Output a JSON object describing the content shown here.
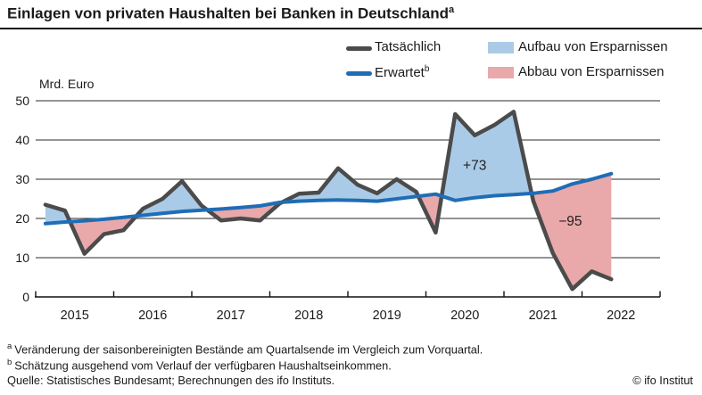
{
  "header": {
    "title": "Einlagen von privaten Haushalten bei Banken in Deutschland",
    "title_superscript": "a"
  },
  "legend": {
    "actual_label": "Tatsächlich",
    "expected_label": "Erwartet",
    "expected_superscript": "b",
    "buildup_label": "Aufbau von Ersparnissen",
    "drawdown_label": "Abbau von Ersparnissen"
  },
  "chart_data": {
    "type": "line",
    "unit_label": "Mrd. Euro",
    "x_years": [
      "2015",
      "2016",
      "2017",
      "2018",
      "2019",
      "2020",
      "2021",
      "2022"
    ],
    "quarters_per_year": 4,
    "ylim": [
      0,
      50
    ],
    "yticks": [
      0,
      10,
      20,
      30,
      40,
      50
    ],
    "grid": "horizontal",
    "legend_position": "top",
    "series": [
      {
        "name": "Tatsächlich",
        "color": "#4b4b4b",
        "values": [
          23.5,
          22.0,
          11.0,
          16.0,
          17.0,
          22.5,
          25.0,
          29.5,
          23.3,
          19.5,
          20.0,
          19.5,
          23.8,
          26.3,
          26.6,
          32.8,
          28.6,
          26.4,
          30.0,
          26.8,
          16.4,
          46.6,
          41.2,
          43.8,
          47.2,
          24.5,
          11.2,
          2.0,
          6.5,
          4.5
        ]
      },
      {
        "name": "Erwartet",
        "color": "#1f6db6",
        "values": [
          18.7,
          19.1,
          19.4,
          19.8,
          20.3,
          20.8,
          21.3,
          21.8,
          22.1,
          22.4,
          22.8,
          23.2,
          24.1,
          24.4,
          24.6,
          24.7,
          24.6,
          24.4,
          25.0,
          25.6,
          26.2,
          24.6,
          25.3,
          25.8,
          26.1,
          26.4,
          27.0,
          28.8,
          30.0,
          31.4
        ]
      }
    ],
    "fills": {
      "above_color": "#aacbe7",
      "above_label": "Aufbau von Ersparnissen",
      "below_color": "#e9a8aa",
      "below_label": "Abbau von Ersparnissen"
    },
    "annotations": [
      {
        "text": "+73",
        "x": 22.0,
        "y": 33.5
      },
      {
        "text": "−95",
        "x": 26.9,
        "y": 19.3
      }
    ]
  },
  "footnotes": [
    {
      "marker": "a",
      "text": "Veränderung der saisonbereinigten Bestände am Quartalsende im Vergleich zum Vorquartal."
    },
    {
      "marker": "b",
      "text": "Schätzung ausgehend vom Verlauf der verfügbaren Haushaltseinkommen."
    }
  ],
  "source": "Quelle: Statistisches Bundesamt; Berechnungen des ifo Instituts.",
  "copyright": "© ifo Institut"
}
